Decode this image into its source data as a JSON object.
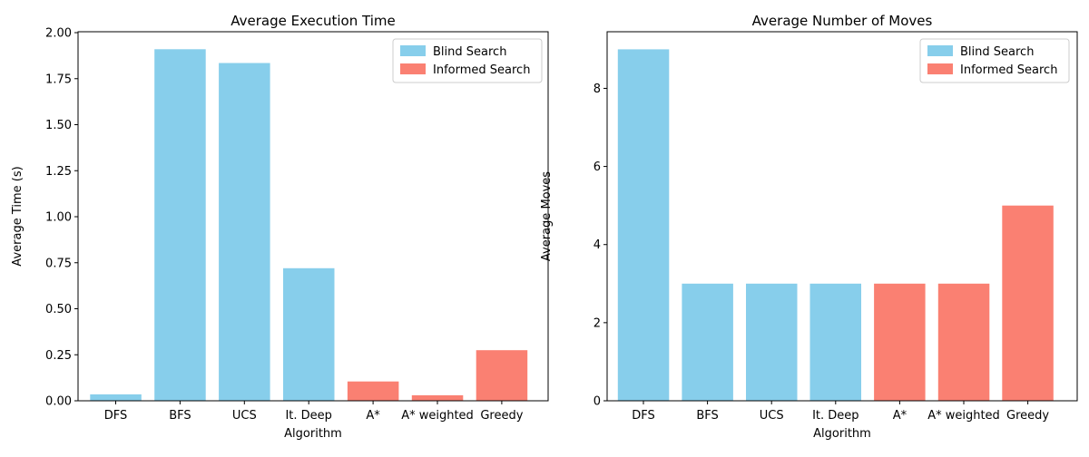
{
  "colors": {
    "blind": "#87CEEB",
    "informed": "#FA8072"
  },
  "chart_data": [
    {
      "type": "bar",
      "title": "Average Execution Time",
      "xlabel": "Algorithm",
      "ylabel": "Average Time (s)",
      "categories": [
        "DFS",
        "BFS",
        "UCS",
        "It. Deep",
        "A*",
        "A* weighted",
        "Greedy"
      ],
      "values": [
        0.035,
        1.91,
        1.835,
        0.72,
        0.105,
        0.03,
        0.275
      ],
      "groups": [
        "Blind Search",
        "Blind Search",
        "Blind Search",
        "Blind Search",
        "Informed Search",
        "Informed Search",
        "Informed Search"
      ],
      "legend": [
        "Blind Search",
        "Informed Search"
      ],
      "legend_position": "top-right",
      "ylim": [
        0,
        2.005
      ],
      "yticks": [
        "0.00",
        "0.25",
        "0.50",
        "0.75",
        "1.00",
        "1.25",
        "1.50",
        "1.75",
        "2.00"
      ],
      "grid": false
    },
    {
      "type": "bar",
      "title": "Average Number of Moves",
      "xlabel": "Algorithm",
      "ylabel": "Average Moves",
      "categories": [
        "DFS",
        "BFS",
        "UCS",
        "It. Deep",
        "A*",
        "A* weighted",
        "Greedy"
      ],
      "values": [
        9,
        3,
        3,
        3,
        3,
        3,
        5
      ],
      "groups": [
        "Blind Search",
        "Blind Search",
        "Blind Search",
        "Blind Search",
        "Informed Search",
        "Informed Search",
        "Informed Search"
      ],
      "legend": [
        "Blind Search",
        "Informed Search"
      ],
      "legend_position": "top-right",
      "ylim": [
        0,
        9.45
      ],
      "yticks": [
        "0",
        "2",
        "4",
        "6",
        "8"
      ],
      "grid": false
    }
  ]
}
